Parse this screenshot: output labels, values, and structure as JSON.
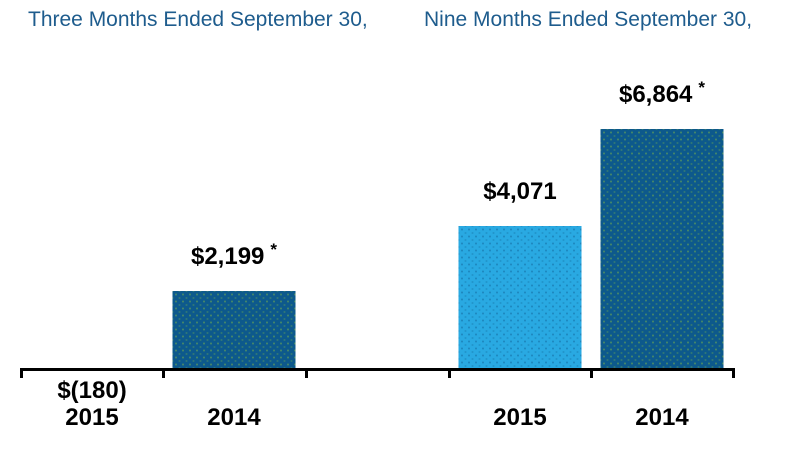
{
  "chart_data": {
    "type": "bar",
    "groups": [
      {
        "title": "Three Months Ended September 30,"
      },
      {
        "title": "Nine Months Ended September 30,"
      }
    ],
    "bars": [
      {
        "group": 0,
        "category": "2015",
        "value": -180,
        "label": "$(180)",
        "asterisk": false,
        "color": "#0d598c"
      },
      {
        "group": 0,
        "category": "2014",
        "value": 2199,
        "label": "$2,199",
        "asterisk": true,
        "color": "#0d598c"
      },
      {
        "group": 1,
        "category": "2015",
        "value": 4071,
        "label": "$4,071",
        "asterisk": false,
        "color": "#29a9e2"
      },
      {
        "group": 1,
        "category": "2014",
        "value": 6864,
        "label": "$6,864",
        "asterisk": true,
        "color": "#0d598c"
      }
    ],
    "footnote_marker": "*",
    "ylim": [
      0,
      7000
    ],
    "grid": false,
    "legend": false,
    "palette": {
      "dark_blue": "#0d598c",
      "light_blue": "#29a9e2",
      "title_blue": "#1e5c8d",
      "axis_black": "#000000"
    }
  }
}
